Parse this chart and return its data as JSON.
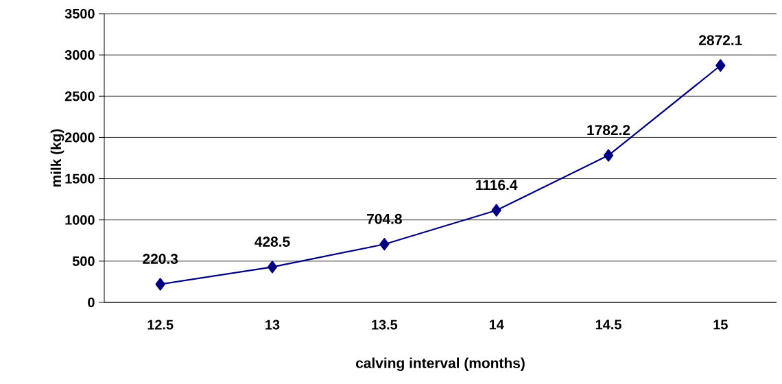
{
  "chart_data": {
    "type": "line",
    "xlabel": "calving interval (months)",
    "ylabel": "milk (kg)",
    "categories": [
      "12.5",
      "13",
      "13.5",
      "14",
      "14.5",
      "15"
    ],
    "series": [
      {
        "color": "#000080",
        "values": [
          220.3,
          428.5,
          704.8,
          1116.4,
          1782.2,
          2872.1
        ],
        "value_labels": [
          "220.3",
          "428.5",
          "704.8",
          "1116.4",
          "1782.2",
          "2872.1"
        ]
      }
    ],
    "ylim": [
      0,
      3500
    ],
    "yticks": [
      0,
      500,
      1000,
      1500,
      2000,
      2500,
      3000,
      3500
    ],
    "grid": "y",
    "marker": "diamond",
    "line_style": "solid"
  }
}
